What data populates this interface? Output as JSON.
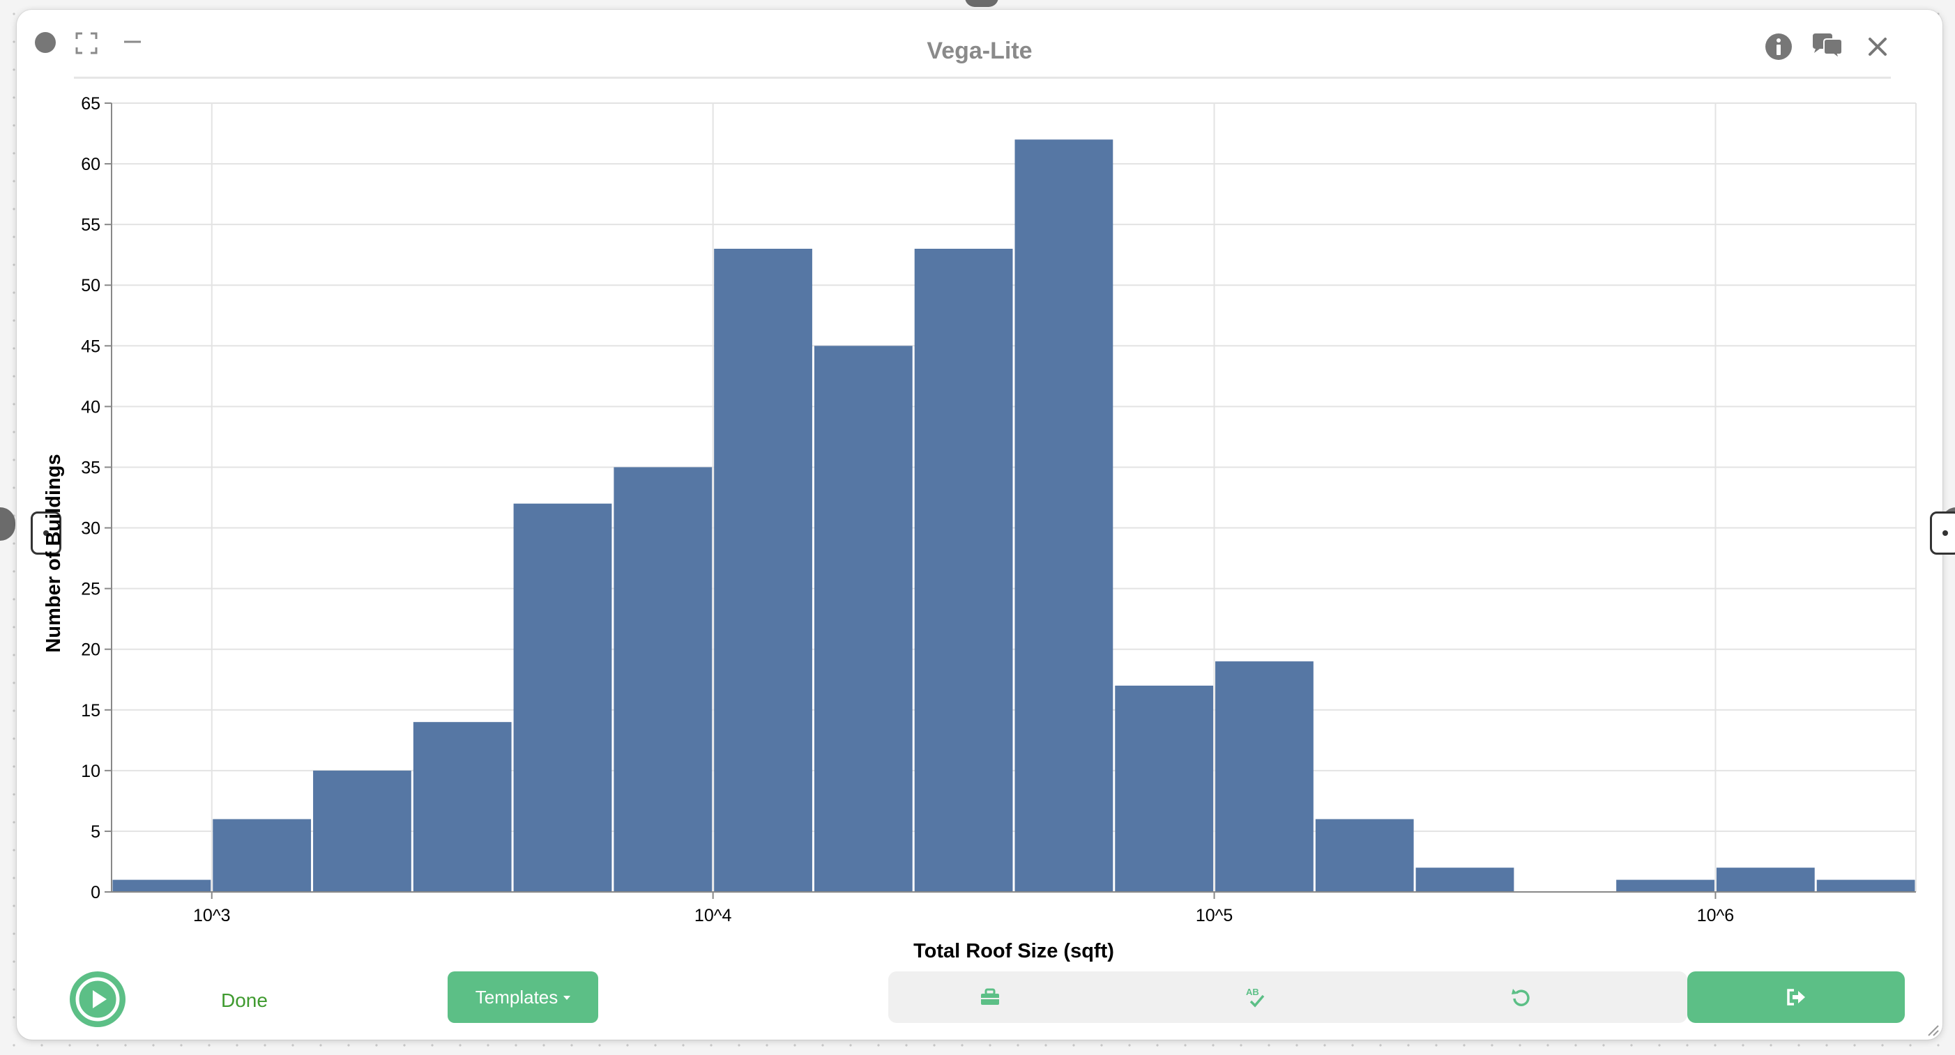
{
  "window": {
    "title": "Vega-Lite",
    "icons": [
      "info-icon",
      "chat-icon",
      "close-icon",
      "expand-icon",
      "minimize-icon"
    ]
  },
  "footer": {
    "done_label": "Done",
    "templates_label": "Templates",
    "icons": [
      "play-icon",
      "toolkit-icon",
      "spellcheck-icon",
      "undo-icon",
      "export-icon"
    ]
  },
  "colors": {
    "bar": "#5677a4",
    "accent": "#5cbf86",
    "done_text": "#3f9a2f"
  },
  "chart_data": {
    "type": "bar",
    "title": "",
    "xlabel": "Total Roof Size (sqft)",
    "ylabel": "Number of Buildings",
    "x_scale": "log",
    "x_tick_labels": [
      "10^3",
      "10^4",
      "10^5",
      "10^6"
    ],
    "y_ticks": [
      0,
      5,
      10,
      15,
      20,
      25,
      30,
      35,
      40,
      45,
      50,
      55,
      60,
      65
    ],
    "ylim": [
      0,
      65
    ],
    "grid": true,
    "bins": [
      {
        "x0": 631,
        "x1": 1000,
        "count": 1
      },
      {
        "x0": 1000,
        "x1": 1585,
        "count": 6
      },
      {
        "x0": 1585,
        "x1": 2512,
        "count": 10
      },
      {
        "x0": 2512,
        "x1": 3981,
        "count": 14
      },
      {
        "x0": 3981,
        "x1": 6310,
        "count": 32
      },
      {
        "x0": 6310,
        "x1": 10000,
        "count": 35
      },
      {
        "x0": 10000,
        "x1": 15849,
        "count": 53
      },
      {
        "x0": 15849,
        "x1": 25119,
        "count": 45
      },
      {
        "x0": 25119,
        "x1": 39811,
        "count": 53
      },
      {
        "x0": 39811,
        "x1": 63096,
        "count": 62
      },
      {
        "x0": 63096,
        "x1": 100000,
        "count": 17
      },
      {
        "x0": 100000,
        "x1": 158489,
        "count": 19
      },
      {
        "x0": 158489,
        "x1": 251189,
        "count": 6
      },
      {
        "x0": 251189,
        "x1": 398107,
        "count": 2
      },
      {
        "x0": 398107,
        "x1": 630957,
        "count": 0
      },
      {
        "x0": 630957,
        "x1": 1000000,
        "count": 1
      },
      {
        "x0": 1000000,
        "x1": 1584893,
        "count": 2
      },
      {
        "x0": 1584893,
        "x1": 2511886,
        "count": 1
      }
    ]
  }
}
